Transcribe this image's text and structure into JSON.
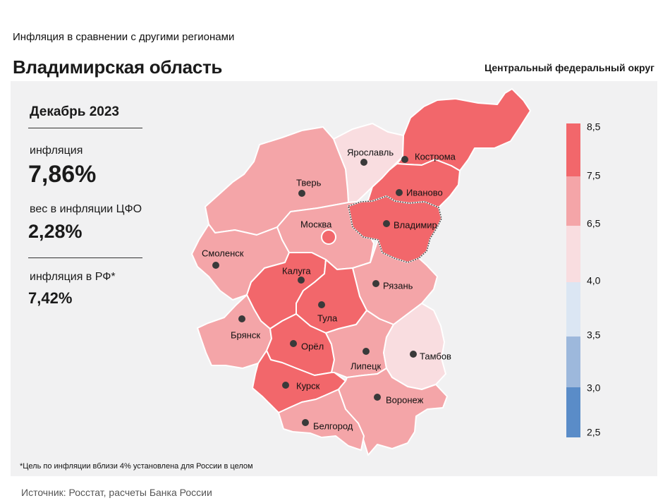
{
  "header": {
    "subtitle": "Инфляция  в сравнении  с другими  регионами",
    "title": "Владимирская область",
    "district": "Центральный федеральный округ"
  },
  "kpis": {
    "period": "Декабрь 2023",
    "inflation_label": "инфляция",
    "inflation_value": "7,86%",
    "weight_label": "вес в инфляции  ЦФО",
    "weight_value": "2,28%",
    "russia_label": "инфляция  в РФ*",
    "russia_value": "7,42%"
  },
  "legend": {
    "ticks": [
      "8,5",
      "7,5",
      "6,5",
      "4,0",
      "3,5",
      "3,0",
      "2,5"
    ],
    "colors": [
      "#f2676b",
      "#f4a5a8",
      "#f9dde0",
      "#dbe6f3",
      "#9db8dc",
      "#5a8cc8"
    ]
  },
  "colors": {
    "panel": "#f1f1f2",
    "high": "#f2676b",
    "mid": "#f4a5a8",
    "low": "#f9dde0",
    "border": "#ffffff"
  },
  "regions": [
    {
      "name": "Ярославль",
      "bin": "low"
    },
    {
      "name": "Кострома",
      "bin": "high"
    },
    {
      "name": "Тверь",
      "bin": "mid"
    },
    {
      "name": "Иваново",
      "bin": "high"
    },
    {
      "name": "Москва",
      "bin": "mid"
    },
    {
      "name": "Владимир",
      "bin": "high",
      "highlight": true
    },
    {
      "name": "Смоленск",
      "bin": "mid"
    },
    {
      "name": "Калуга",
      "bin": "high"
    },
    {
      "name": "Рязань",
      "bin": "mid"
    },
    {
      "name": "Тула",
      "bin": "high"
    },
    {
      "name": "Брянск",
      "bin": "mid"
    },
    {
      "name": "Орёл",
      "bin": "high"
    },
    {
      "name": "Липецк",
      "bin": "mid"
    },
    {
      "name": "Тамбов",
      "bin": "low"
    },
    {
      "name": "Курск",
      "bin": "high"
    },
    {
      "name": "Воронеж",
      "bin": "mid"
    },
    {
      "name": "Белгород",
      "bin": "mid"
    }
  ],
  "footnote": "*Цель по инфляции вблизи 4% установлена для России в целом",
  "source": "Источник: Росстат, расчеты Банка России"
}
